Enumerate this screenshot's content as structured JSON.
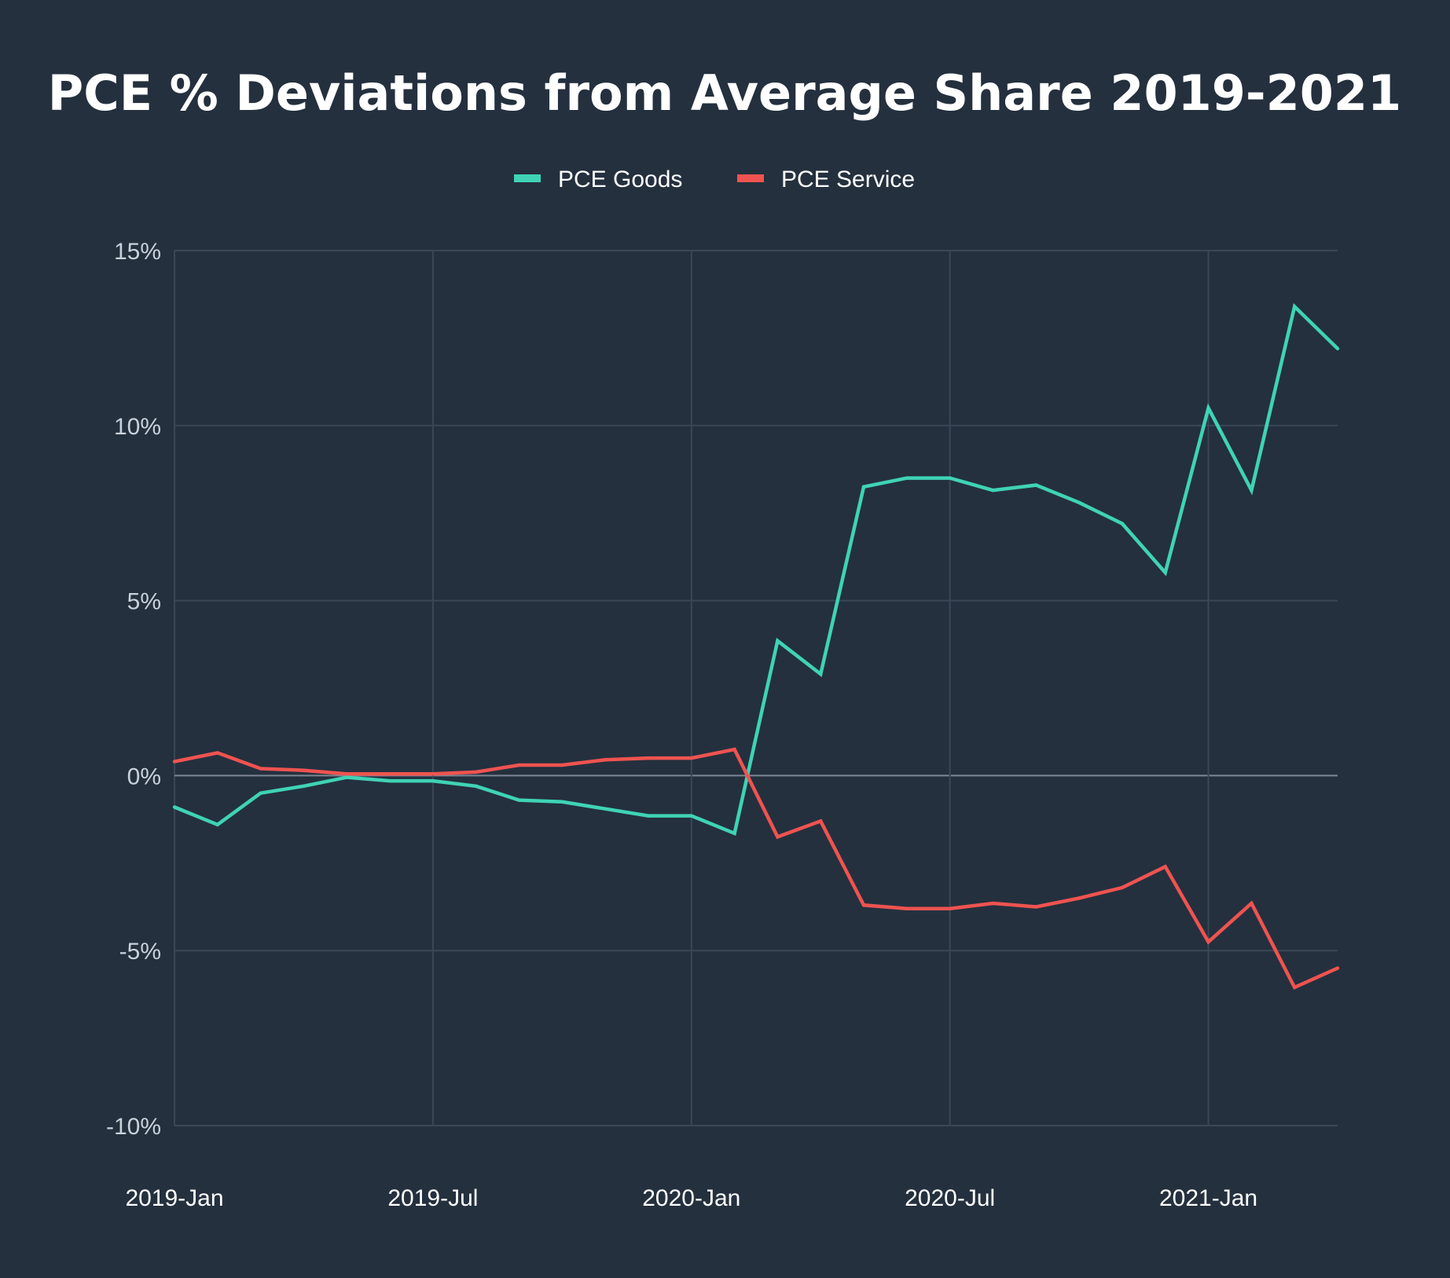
{
  "chart_data": {
    "type": "line",
    "title": "PCE % Deviations from Average Share 2019-2021",
    "xlabel": "",
    "ylabel": "",
    "ylim": [
      -10,
      15
    ],
    "yticks": [
      "15%",
      "10%",
      "5%",
      "0%",
      "-5%",
      "-10%"
    ],
    "ytick_values": [
      15,
      10,
      5,
      0,
      -5,
      -10
    ],
    "xtick_labels": [
      "2019-Jan",
      "2019-Jul",
      "2020-Jan",
      "2020-Jul",
      "2021-Jan"
    ],
    "xtick_index": [
      0,
      6,
      12,
      18,
      24
    ],
    "x": [
      "2019-01",
      "2019-02",
      "2019-03",
      "2019-04",
      "2019-05",
      "2019-06",
      "2019-07",
      "2019-08",
      "2019-09",
      "2019-10",
      "2019-11",
      "2019-12",
      "2020-01",
      "2020-02",
      "2020-03",
      "2020-04",
      "2020-05",
      "2020-06",
      "2020-07",
      "2020-08",
      "2020-09",
      "2020-10",
      "2020-11",
      "2020-12",
      "2021-01",
      "2021-02",
      "2021-03",
      "2021-04"
    ],
    "series": [
      {
        "name": "PCE Goods",
        "color": "#3fd3b5",
        "values": [
          -0.9,
          -1.4,
          -0.5,
          -0.3,
          -0.05,
          -0.15,
          -0.15,
          -0.3,
          -0.7,
          -0.75,
          -0.95,
          -1.15,
          -1.15,
          -1.65,
          3.85,
          2.9,
          8.25,
          8.5,
          8.5,
          8.15,
          8.3,
          7.8,
          7.2,
          5.8,
          10.5,
          8.15,
          13.4,
          12.2
        ]
      },
      {
        "name": "PCE Service",
        "color": "#ef5350",
        "values": [
          0.4,
          0.65,
          0.2,
          0.15,
          0.05,
          0.05,
          0.05,
          0.1,
          0.3,
          0.3,
          0.45,
          0.5,
          0.5,
          0.75,
          -1.75,
          -1.3,
          -3.7,
          -3.8,
          -3.8,
          -3.65,
          -3.75,
          -3.5,
          -3.2,
          -2.6,
          -4.75,
          -3.65,
          -6.05,
          -5.5
        ]
      }
    ],
    "legend_position": "top-center",
    "grid": true
  }
}
